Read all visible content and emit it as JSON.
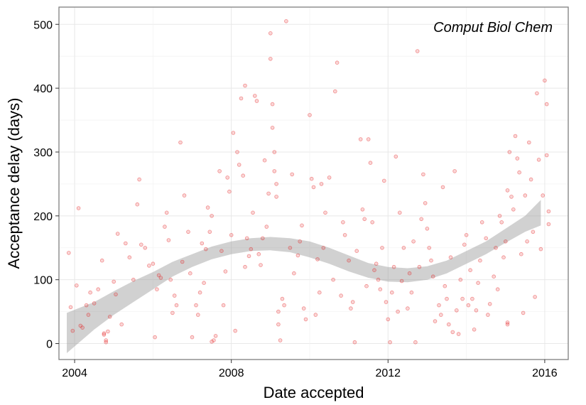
{
  "chart_data": {
    "type": "scatter",
    "title": "",
    "annotation": "Comput Biol Chem",
    "xlabel": "Date accepted",
    "ylabel": "Acceptance delay (days)",
    "x_unit": "year",
    "xlim": [
      2003.6,
      2016.6
    ],
    "ylim": [
      -25,
      527
    ],
    "x_ticks": [
      2004,
      2008,
      2012,
      2016
    ],
    "x_tick_labels": [
      "2004",
      "2008",
      "2012",
      "2016"
    ],
    "y_ticks": [
      0,
      100,
      200,
      300,
      400,
      500
    ],
    "y_tick_labels": [
      "0",
      "100",
      "200",
      "300",
      "400",
      "500"
    ],
    "grid": true,
    "point_color": "#e41a1c",
    "band_color": "#999999",
    "smooth_band": {
      "x": [
        2003.8,
        2004.5,
        2005.0,
        2005.5,
        2006.0,
        2006.5,
        2007.0,
        2007.5,
        2008.0,
        2008.5,
        2009.0,
        2009.5,
        2010.0,
        2010.5,
        2011.0,
        2011.5,
        2012.0,
        2012.5,
        2013.0,
        2013.5,
        2014.0,
        2014.5,
        2015.0,
        2015.5,
        2015.9
      ],
      "lower": [
        -15,
        22,
        45,
        65,
        85,
        105,
        120,
        132,
        140,
        145,
        146,
        143,
        135,
        125,
        113,
        103,
        97,
        96,
        100,
        110,
        125,
        140,
        158,
        175,
        185
      ],
      "upper": [
        48,
        65,
        82,
        98,
        112,
        128,
        140,
        152,
        160,
        165,
        167,
        165,
        160,
        150,
        138,
        126,
        120,
        118,
        121,
        130,
        145,
        160,
        180,
        200,
        225
      ]
    },
    "points": [
      [
        2003.85,
        142
      ],
      [
        2003.9,
        57
      ],
      [
        2003.95,
        20
      ],
      [
        2004.05,
        91
      ],
      [
        2004.1,
        212
      ],
      [
        2004.15,
        28
      ],
      [
        2004.2,
        25
      ],
      [
        2004.3,
        60
      ],
      [
        2004.35,
        45
      ],
      [
        2004.4,
        80
      ],
      [
        2004.5,
        63
      ],
      [
        2004.6,
        85
      ],
      [
        2004.7,
        130
      ],
      [
        2004.75,
        16
      ],
      [
        2004.75,
        14
      ],
      [
        2004.8,
        2
      ],
      [
        2004.8,
        5
      ],
      [
        2004.85,
        19
      ],
      [
        2004.9,
        42
      ],
      [
        2005.0,
        97
      ],
      [
        2005.05,
        77
      ],
      [
        2005.1,
        172
      ],
      [
        2005.2,
        30
      ],
      [
        2005.3,
        157
      ],
      [
        2005.4,
        135
      ],
      [
        2005.5,
        100
      ],
      [
        2005.6,
        218
      ],
      [
        2005.65,
        257
      ],
      [
        2005.7,
        155
      ],
      [
        2005.8,
        150
      ],
      [
        2005.9,
        122
      ],
      [
        2006.0,
        125
      ],
      [
        2006.05,
        10
      ],
      [
        2006.1,
        85
      ],
      [
        2006.15,
        107
      ],
      [
        2006.2,
        103
      ],
      [
        2006.3,
        183
      ],
      [
        2006.35,
        205
      ],
      [
        2006.4,
        162
      ],
      [
        2006.45,
        100
      ],
      [
        2006.5,
        48
      ],
      [
        2006.55,
        75
      ],
      [
        2006.6,
        60
      ],
      [
        2006.7,
        315
      ],
      [
        2006.75,
        128
      ],
      [
        2006.8,
        232
      ],
      [
        2006.9,
        175
      ],
      [
        2006.95,
        110
      ],
      [
        2007.0,
        10
      ],
      [
        2007.1,
        60
      ],
      [
        2007.15,
        45
      ],
      [
        2007.2,
        80
      ],
      [
        2007.25,
        157
      ],
      [
        2007.3,
        95
      ],
      [
        2007.35,
        148
      ],
      [
        2007.4,
        213
      ],
      [
        2007.45,
        175
      ],
      [
        2007.5,
        200
      ],
      [
        2007.5,
        3
      ],
      [
        2007.55,
        5
      ],
      [
        2007.6,
        12
      ],
      [
        2007.7,
        270
      ],
      [
        2007.75,
        145
      ],
      [
        2007.8,
        60
      ],
      [
        2007.85,
        113
      ],
      [
        2007.9,
        260
      ],
      [
        2007.95,
        238
      ],
      [
        2008.0,
        170
      ],
      [
        2008.05,
        330
      ],
      [
        2008.1,
        20
      ],
      [
        2008.15,
        300
      ],
      [
        2008.2,
        280
      ],
      [
        2008.25,
        384
      ],
      [
        2008.3,
        263
      ],
      [
        2008.35,
        120
      ],
      [
        2008.35,
        404
      ],
      [
        2008.4,
        165
      ],
      [
        2008.45,
        137
      ],
      [
        2008.5,
        148
      ],
      [
        2008.55,
        205
      ],
      [
        2008.6,
        388
      ],
      [
        2008.65,
        380
      ],
      [
        2008.7,
        140
      ],
      [
        2008.75,
        123
      ],
      [
        2008.8,
        165
      ],
      [
        2008.85,
        287
      ],
      [
        2008.9,
        183
      ],
      [
        2008.95,
        235
      ],
      [
        2009.0,
        486
      ],
      [
        2009.0,
        446
      ],
      [
        2009.05,
        375
      ],
      [
        2009.05,
        338
      ],
      [
        2009.1,
        300
      ],
      [
        2009.1,
        270
      ],
      [
        2009.15,
        250
      ],
      [
        2009.15,
        230
      ],
      [
        2009.2,
        50
      ],
      [
        2009.2,
        30
      ],
      [
        2009.25,
        5
      ],
      [
        2009.3,
        70
      ],
      [
        2009.35,
        60
      ],
      [
        2009.4,
        505
      ],
      [
        2009.5,
        150
      ],
      [
        2009.55,
        265
      ],
      [
        2009.6,
        110
      ],
      [
        2009.7,
        138
      ],
      [
        2009.75,
        160
      ],
      [
        2009.8,
        185
      ],
      [
        2009.85,
        55
      ],
      [
        2009.9,
        38
      ],
      [
        2010.0,
        358
      ],
      [
        2010.05,
        258
      ],
      [
        2010.1,
        245
      ],
      [
        2010.15,
        45
      ],
      [
        2010.2,
        132
      ],
      [
        2010.25,
        80
      ],
      [
        2010.3,
        250
      ],
      [
        2010.35,
        150
      ],
      [
        2010.4,
        205
      ],
      [
        2010.5,
        260
      ],
      [
        2010.6,
        100
      ],
      [
        2010.65,
        395
      ],
      [
        2010.7,
        440
      ],
      [
        2010.8,
        75
      ],
      [
        2010.85,
        190
      ],
      [
        2010.9,
        170
      ],
      [
        2011.0,
        130
      ],
      [
        2011.05,
        55
      ],
      [
        2011.1,
        65
      ],
      [
        2011.15,
        2
      ],
      [
        2011.2,
        145
      ],
      [
        2011.3,
        320
      ],
      [
        2011.35,
        210
      ],
      [
        2011.4,
        195
      ],
      [
        2011.45,
        90
      ],
      [
        2011.5,
        320
      ],
      [
        2011.55,
        283
      ],
      [
        2011.6,
        190
      ],
      [
        2011.65,
        115
      ],
      [
        2011.7,
        125
      ],
      [
        2011.75,
        100
      ],
      [
        2011.8,
        85
      ],
      [
        2011.85,
        150
      ],
      [
        2011.9,
        255
      ],
      [
        2011.95,
        65
      ],
      [
        2012.0,
        38
      ],
      [
        2012.05,
        2
      ],
      [
        2012.1,
        80
      ],
      [
        2012.15,
        120
      ],
      [
        2012.2,
        293
      ],
      [
        2012.25,
        50
      ],
      [
        2012.3,
        205
      ],
      [
        2012.35,
        98
      ],
      [
        2012.4,
        150
      ],
      [
        2012.5,
        55
      ],
      [
        2012.55,
        110
      ],
      [
        2012.6,
        80
      ],
      [
        2012.65,
        160
      ],
      [
        2012.7,
        2
      ],
      [
        2012.75,
        458
      ],
      [
        2012.8,
        120
      ],
      [
        2012.85,
        195
      ],
      [
        2012.9,
        265
      ],
      [
        2012.95,
        220
      ],
      [
        2013.0,
        180
      ],
      [
        2013.05,
        150
      ],
      [
        2013.1,
        130
      ],
      [
        2013.15,
        105
      ],
      [
        2013.2,
        35
      ],
      [
        2013.3,
        60
      ],
      [
        2013.35,
        45
      ],
      [
        2013.4,
        245
      ],
      [
        2013.45,
        90
      ],
      [
        2013.5,
        70
      ],
      [
        2013.55,
        30
      ],
      [
        2013.6,
        135
      ],
      [
        2013.65,
        18
      ],
      [
        2013.7,
        270
      ],
      [
        2013.75,
        52
      ],
      [
        2013.8,
        15
      ],
      [
        2013.85,
        100
      ],
      [
        2013.9,
        70
      ],
      [
        2013.95,
        155
      ],
      [
        2014.0,
        170
      ],
      [
        2014.05,
        60
      ],
      [
        2014.1,
        115
      ],
      [
        2014.15,
        70
      ],
      [
        2014.2,
        22
      ],
      [
        2014.25,
        52
      ],
      [
        2014.3,
        95
      ],
      [
        2014.35,
        130
      ],
      [
        2014.4,
        190
      ],
      [
        2014.5,
        165
      ],
      [
        2014.55,
        45
      ],
      [
        2014.6,
        62
      ],
      [
        2014.7,
        105
      ],
      [
        2014.75,
        150
      ],
      [
        2014.8,
        85
      ],
      [
        2014.85,
        200
      ],
      [
        2014.9,
        190
      ],
      [
        2014.95,
        135
      ],
      [
        2015.0,
        160
      ],
      [
        2015.05,
        240
      ],
      [
        2015.05,
        33
      ],
      [
        2015.05,
        30
      ],
      [
        2015.1,
        300
      ],
      [
        2015.15,
        230
      ],
      [
        2015.2,
        210
      ],
      [
        2015.25,
        325
      ],
      [
        2015.3,
        290
      ],
      [
        2015.35,
        268
      ],
      [
        2015.4,
        140
      ],
      [
        2015.45,
        48
      ],
      [
        2015.5,
        232
      ],
      [
        2015.55,
        160
      ],
      [
        2015.6,
        315
      ],
      [
        2015.65,
        257
      ],
      [
        2015.7,
        175
      ],
      [
        2015.75,
        73
      ],
      [
        2015.8,
        392
      ],
      [
        2015.85,
        288
      ],
      [
        2015.9,
        148
      ],
      [
        2015.95,
        232
      ],
      [
        2016.0,
        412
      ],
      [
        2016.05,
        375
      ],
      [
        2016.05,
        295
      ],
      [
        2016.1,
        207
      ],
      [
        2016.1,
        187
      ]
    ]
  }
}
